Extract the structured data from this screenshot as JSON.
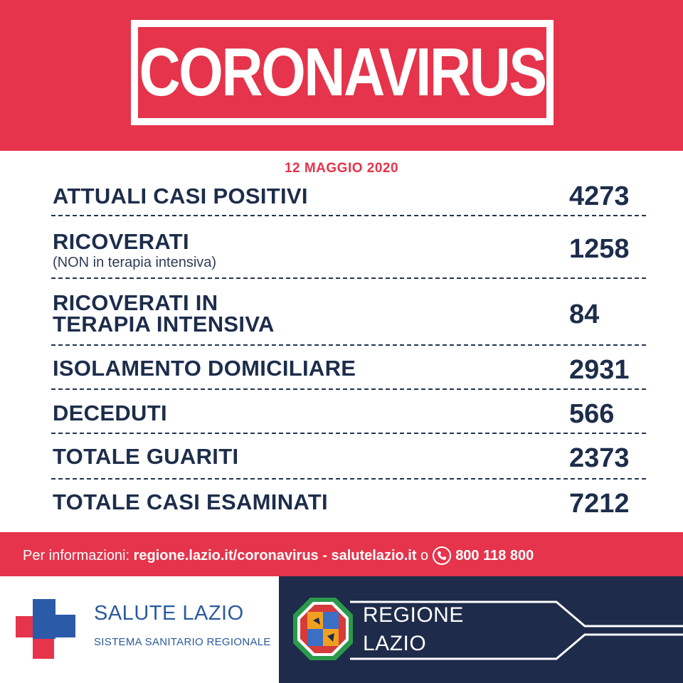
{
  "header": {
    "title": "CORONAVIRUS"
  },
  "date": "12 MAGGIO 2020",
  "stats": [
    {
      "label": "ATTUALI CASI POSITIVI",
      "sub": "",
      "value": "4273"
    },
    {
      "label": "RICOVERATI",
      "sub": "(NON in terapia intensiva)",
      "value": "1258"
    },
    {
      "label": "RICOVERATI IN",
      "label2": "TERAPIA INTENSIVA",
      "sub": "",
      "value": "84"
    },
    {
      "label": "ISOLAMENTO DOMICILIARE",
      "sub": "",
      "value": "2931"
    },
    {
      "label": "DECEDUTI",
      "sub": "",
      "value": "566"
    },
    {
      "label": "TOTALE GUARITI",
      "sub": "",
      "value": "2373"
    },
    {
      "label": "TOTALE CASI ESAMINATI",
      "sub": "",
      "value": "7212"
    }
  ],
  "info": {
    "prefix": "Per informazioni: ",
    "link1": "regione.lazio.it/coronavirus",
    "sep": " - ",
    "link2": "salutelazio.it",
    "or": " o",
    "phone": "800 118 800"
  },
  "footer": {
    "salute_title": "SALUTE LAZIO",
    "salute_sub": "SISTEMA SANITARIO REGIONALE",
    "regione_line1": "REGIONE",
    "regione_line2": "LAZIO"
  },
  "colors": {
    "red": "#e5344b",
    "navy": "#1e2b4a",
    "text": "#1d2d4b",
    "blue": "#2b5a9e"
  }
}
